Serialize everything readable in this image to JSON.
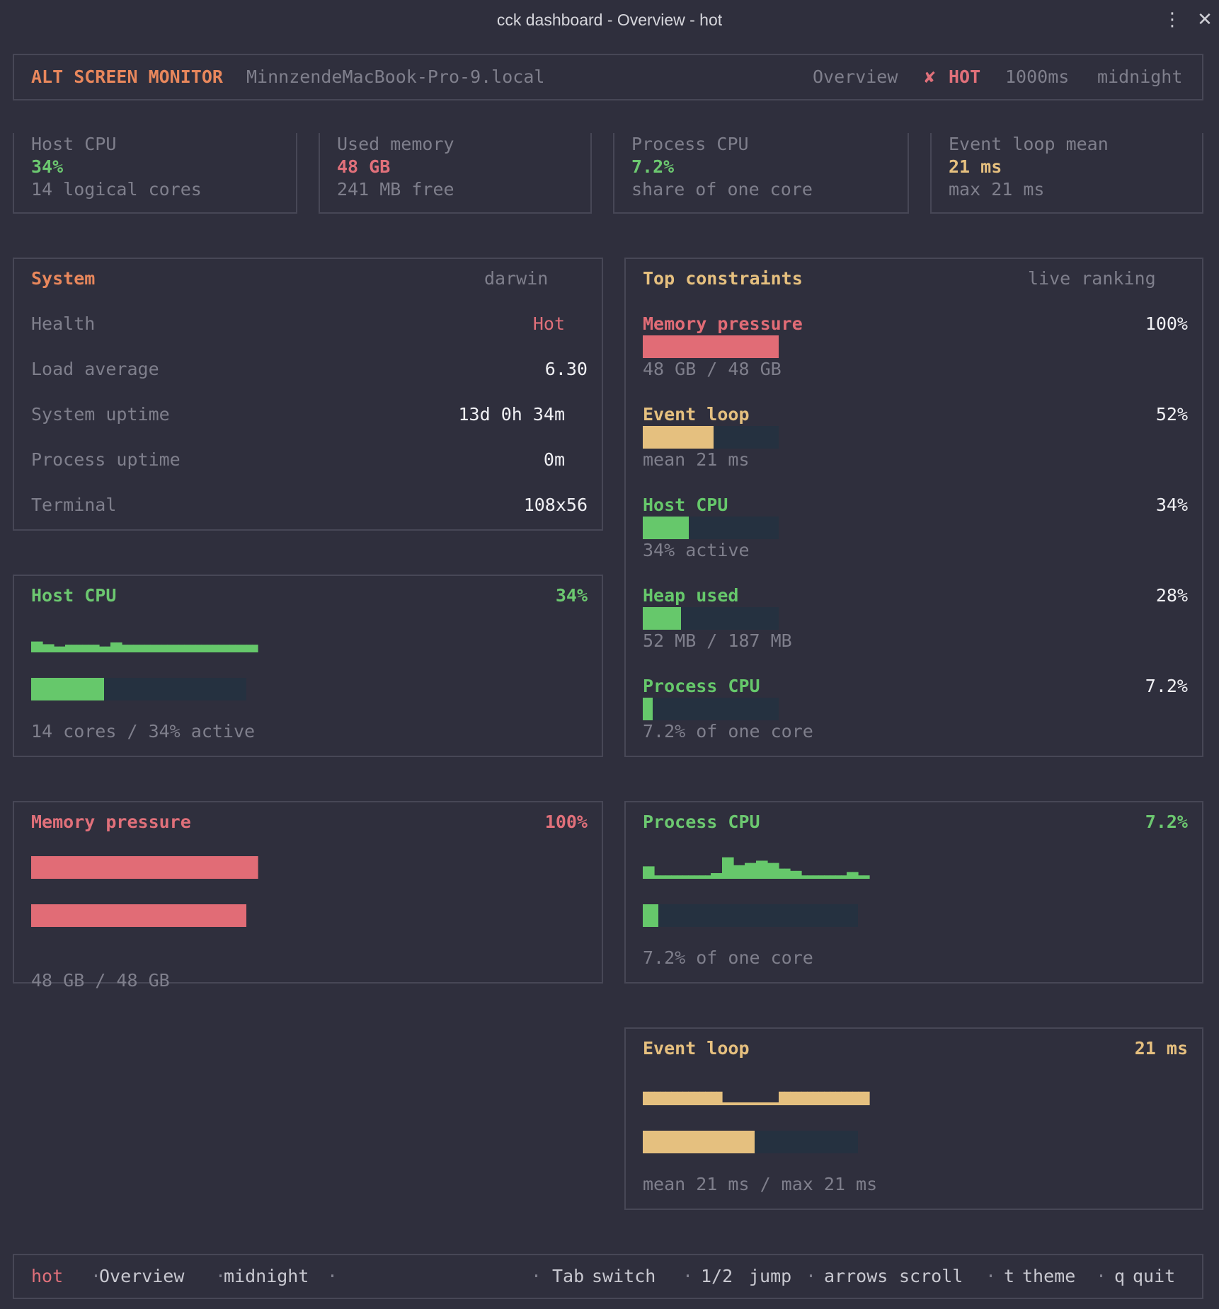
{
  "window": {
    "title": "cck dashboard - Overview - hot",
    "menu_icon": "⋮",
    "close_icon": "✕"
  },
  "header": {
    "brand": "ALT SCREEN MONITOR",
    "host": "MinnzendeMacBook-Pro-9.local",
    "view": "Overview",
    "status_icon": "✘",
    "status": "HOT",
    "interval": "1000ms",
    "theme": "midnight"
  },
  "stats": [
    {
      "label": "Host CPU",
      "value": "34%",
      "sub": "14 logical cores"
    },
    {
      "label": "Used memory",
      "value": "48 GB",
      "sub": "241 MB free"
    },
    {
      "label": "Process CPU",
      "value": "7.2%",
      "sub": "share of one core"
    },
    {
      "label": "Event loop mean",
      "value": "21 ms",
      "sub": "max 21 ms"
    }
  ],
  "system": {
    "title": "System",
    "platform": "darwin",
    "rows": [
      {
        "label": "Health",
        "value": "Hot"
      },
      {
        "label": "Load average",
        "value": "6.30"
      },
      {
        "label": "System uptime",
        "value": "13d 0h 34m"
      },
      {
        "label": "Process uptime",
        "value": "0m"
      },
      {
        "label": "Terminal",
        "value": "108x56"
      }
    ]
  },
  "constraints": {
    "title": "Top constraints",
    "subtitle": "live ranking",
    "items": [
      {
        "name": "Memory pressure",
        "pct_label": "100%",
        "fraction": 1.0,
        "detail": "48 GB / 48 GB",
        "color": "#e16c76"
      },
      {
        "name": "Event loop",
        "pct_label": "52%",
        "fraction": 0.52,
        "detail": "mean 21 ms",
        "color": "#e5c07f"
      },
      {
        "name": "Host CPU",
        "pct_label": "34%",
        "fraction": 0.34,
        "detail": "34% active",
        "color": "#66c86b"
      },
      {
        "name": "Heap used",
        "pct_label": "28%",
        "fraction": 0.28,
        "detail": "52 MB / 187 MB",
        "color": "#66c86b"
      },
      {
        "name": "Process CPU",
        "pct_label": "7.2%",
        "fraction": 0.072,
        "detail": "7.2% of one core",
        "color": "#66c86b"
      }
    ]
  },
  "panels": {
    "host_cpu": {
      "title": "Host CPU",
      "value": "34%",
      "fraction": 0.34,
      "footer": "14 cores / 34% active",
      "history": [
        0.48,
        0.48,
        0.36,
        0.36,
        0.26,
        0.26,
        0.34,
        0.34,
        0.34,
        0.34,
        0.34,
        0.34,
        0.26,
        0.26,
        0.44,
        0.44,
        0.34,
        0.34,
        0.34,
        0.34,
        0.34,
        0.34,
        0.34,
        0.34,
        0.34,
        0.34,
        0.34,
        0.34,
        0.34,
        0.34,
        0.34,
        0.34,
        0.34,
        0.34,
        0.34,
        0.34,
        0.34,
        0.34,
        0.34,
        0.34
      ]
    },
    "memory": {
      "title": "Memory pressure",
      "value": "100%",
      "fraction": 1.0,
      "footer": "48 GB / 48 GB",
      "history": [
        1,
        1,
        1,
        1,
        1,
        1,
        1,
        1,
        1,
        1,
        1,
        1,
        1,
        1,
        1,
        1,
        1,
        1,
        1,
        1,
        1,
        1,
        1,
        1,
        1,
        1,
        1,
        1,
        1,
        1,
        1,
        1,
        1,
        1,
        1,
        1,
        1,
        1,
        1,
        1
      ]
    },
    "process_cpu": {
      "title": "Process CPU",
      "value": "7.2%",
      "fraction": 0.072,
      "footer": "7.2% of one core",
      "history": [
        0.55,
        0.55,
        0.15,
        0.15,
        0.15,
        0.15,
        0.15,
        0.15,
        0.15,
        0.15,
        0.15,
        0.15,
        0.25,
        0.25,
        0.95,
        0.95,
        0.6,
        0.6,
        0.7,
        0.7,
        0.8,
        0.8,
        0.7,
        0.7,
        0.45,
        0.45,
        0.35,
        0.35,
        0.15,
        0.15,
        0.15,
        0.15,
        0.15,
        0.15,
        0.15,
        0.15,
        0.3,
        0.3,
        0.15,
        0.15
      ]
    },
    "event_loop": {
      "title": "Event loop",
      "value": "21 ms",
      "fraction": 0.52,
      "footer": "mean 21 ms / max 21 ms",
      "history": [
        0.6,
        0.6,
        0.6,
        0.6,
        0.6,
        0.6,
        0.6,
        0.6,
        0.6,
        0.6,
        0.6,
        0.6,
        0.6,
        0.6,
        0.1,
        0.1,
        0.1,
        0.1,
        0.1,
        0.1,
        0.1,
        0.1,
        0.1,
        0.1,
        0.6,
        0.6,
        0.6,
        0.6,
        0.6,
        0.6,
        0.6,
        0.6,
        0.6,
        0.6,
        0.6,
        0.6,
        0.6,
        0.6,
        0.6,
        0.6
      ]
    }
  },
  "footer": {
    "status": "hot",
    "sep": "·",
    "view": "Overview",
    "theme": "midnight",
    "keys": [
      {
        "key": "Tab",
        "action": "switch"
      },
      {
        "key": "1/2",
        "action": "jump"
      },
      {
        "key": "arrows",
        "action": "scroll"
      },
      {
        "key": "t",
        "action": "theme"
      },
      {
        "key": "q",
        "action": "quit"
      }
    ]
  },
  "colors": {
    "green": "#66c86b",
    "red": "#e16c76",
    "yellow": "#e5c07f",
    "track": "#253140",
    "accent": "#e8875c"
  }
}
